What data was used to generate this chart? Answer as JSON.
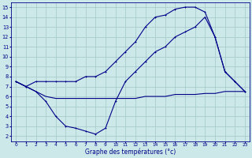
{
  "title": "Graphe des températures (°c)",
  "bg_color": "#cce8e8",
  "grid_color": "#aacccc",
  "line_color": "#000088",
  "xlim": [
    -0.5,
    23.5
  ],
  "ylim": [
    1.5,
    15.5
  ],
  "xticks": [
    0,
    1,
    2,
    3,
    4,
    5,
    6,
    7,
    8,
    9,
    10,
    11,
    12,
    13,
    14,
    15,
    16,
    17,
    18,
    19,
    20,
    21,
    22,
    23
  ],
  "yticks": [
    2,
    3,
    4,
    5,
    6,
    7,
    8,
    9,
    10,
    11,
    12,
    13,
    14,
    15
  ],
  "line_upper_x": [
    0,
    1,
    2,
    3,
    4,
    5,
    6,
    7,
    8,
    9,
    10,
    11,
    12,
    13,
    14,
    15,
    16,
    17,
    18,
    19,
    20,
    21,
    22,
    23
  ],
  "line_upper_y": [
    7.5,
    7.0,
    7.5,
    7.5,
    7.5,
    7.5,
    7.5,
    8.0,
    8.0,
    8.5,
    9.5,
    10.5,
    11.5,
    13.0,
    14.0,
    14.2,
    14.8,
    15.0,
    15.0,
    14.5,
    12.0,
    8.5,
    7.5,
    6.5
  ],
  "line_flat_x": [
    0,
    1,
    2,
    3,
    4,
    5,
    6,
    7,
    8,
    9,
    10,
    11,
    12,
    13,
    14,
    15,
    16,
    17,
    18,
    19,
    20,
    21,
    22,
    23
  ],
  "line_flat_y": [
    7.5,
    7.0,
    6.5,
    6.0,
    5.8,
    5.8,
    5.8,
    5.8,
    5.8,
    5.8,
    5.8,
    5.8,
    5.8,
    6.0,
    6.0,
    6.0,
    6.2,
    6.2,
    6.2,
    6.3,
    6.3,
    6.5,
    6.5,
    6.5
  ],
  "line_dip_x": [
    0,
    1,
    2,
    3,
    4,
    5,
    6,
    7,
    8,
    9,
    10,
    11,
    12,
    13,
    14,
    15,
    16,
    17,
    18,
    19,
    20,
    21,
    22,
    23
  ],
  "line_dip_y": [
    7.5,
    7.0,
    6.5,
    5.5,
    4.0,
    3.0,
    2.8,
    2.5,
    2.2,
    2.8,
    5.5,
    7.5,
    8.5,
    9.5,
    10.5,
    11.0,
    12.0,
    12.5,
    13.0,
    14.0,
    12.0,
    8.5,
    7.5,
    6.5
  ]
}
